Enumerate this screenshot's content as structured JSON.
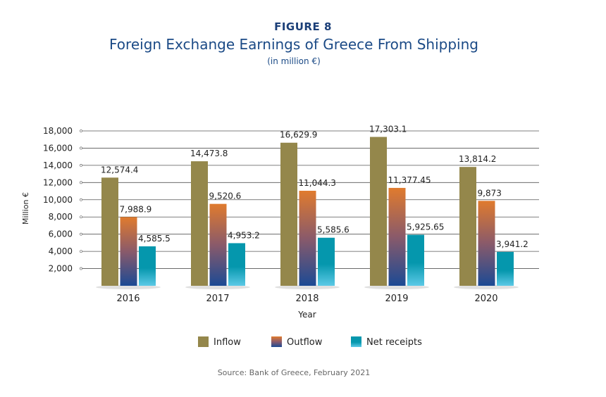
{
  "figure_label": "FIGURE 8",
  "source": "Source: Bank of Greece, February 2021",
  "chart_data": {
    "type": "bar",
    "title": "Foreign Exchange Earnings of Greece From Shipping",
    "subtitle": "(in million €)",
    "xlabel": "Year",
    "ylabel": "Million €",
    "categories": [
      "2016",
      "2017",
      "2018",
      "2019",
      "2020"
    ],
    "ylim": [
      0,
      18000
    ],
    "yticks": [
      2000,
      4000,
      6000,
      8000,
      10000,
      12000,
      14000,
      16000,
      18000
    ],
    "ytick_labels": [
      "2,000",
      "4,000",
      "6,000",
      "8,000",
      "10,000",
      "12,000",
      "14,000",
      "16,000",
      "18,000"
    ],
    "grid": true,
    "legend_position": "bottom",
    "series": [
      {
        "name": "Inflow",
        "values": [
          12574.4,
          14473.8,
          16629.9,
          17303.1,
          13814.2
        ],
        "labels": [
          "12,574.4",
          "14,473.8",
          "16,629.9",
          "17,303.1",
          "13,814.2"
        ],
        "color": "#94874b"
      },
      {
        "name": "Outflow",
        "values": [
          7988.9,
          9520.6,
          11044.3,
          11377.45,
          9873
        ],
        "labels": [
          "7,988.9",
          "9,520.6",
          "11,044.3",
          "11,377.45",
          "9,873"
        ],
        "color": "#e07b2e",
        "color2": "#1c4a94"
      },
      {
        "name": "Net receipts",
        "values": [
          4585.5,
          4953.2,
          5585.6,
          5925.65,
          3941.2
        ],
        "labels": [
          "4,585.5",
          "4,953.2",
          "5,585.6",
          "5,925.65",
          "3,941.2"
        ],
        "color": "#0597ad",
        "color2": "#5cc9e6"
      }
    ]
  }
}
